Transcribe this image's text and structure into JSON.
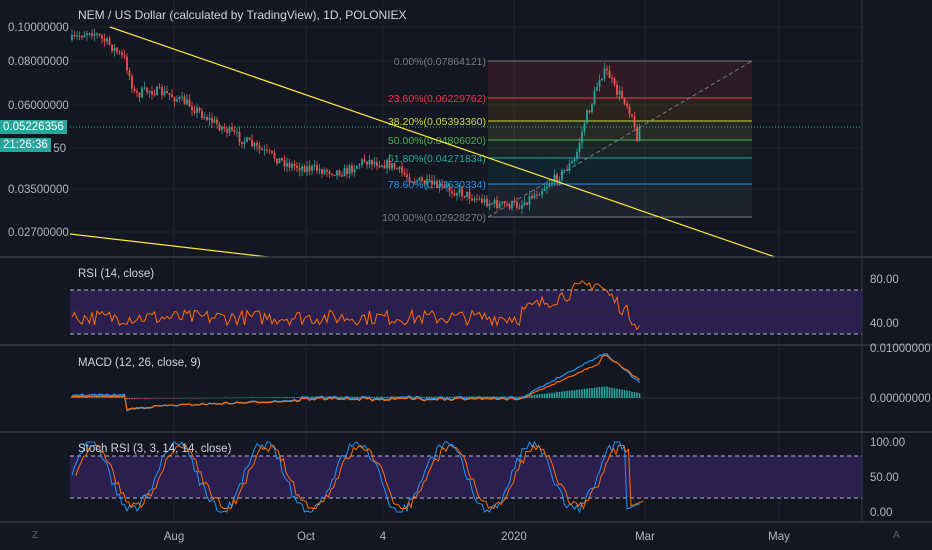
{
  "symbol_title": "NEM / US Dollar (calculated by TradingView), 1D, POLONIEX",
  "price_axis": [
    "0.10000000",
    "0.08000000",
    "0.06000000",
    "0.05226356",
    "0.04500000",
    "0.03500000",
    "0.02700000"
  ],
  "current_price_tag": "0.05226356",
  "countdown_tag": "21:26:36",
  "fib_levels": [
    {
      "label": "0.00%(0.07864121)",
      "color": "#787b86"
    },
    {
      "label": "23.60%(0.06229762)",
      "color": "#f23645"
    },
    {
      "label": "38.20%(0.05393360)",
      "color": "#cddc39"
    },
    {
      "label": "50.00%(0.04806020)",
      "color": "#4caf50"
    },
    {
      "label": "61.80%(0.04271834)",
      "color": "#26a69a"
    },
    {
      "label": "78.60%(0.03630334)",
      "color": "#2196f3"
    },
    {
      "label": "100.00%(0.02928270)",
      "color": "#787b86"
    }
  ],
  "indicators": {
    "rsi": {
      "title": "RSI (14, close)",
      "axis": [
        "80.00",
        "40.00"
      ]
    },
    "macd": {
      "title": "MACD (12, 26, close, 9)",
      "axis": [
        "0.01000000",
        "0.00000000"
      ]
    },
    "stoch": {
      "title": "Stoch RSI (3, 3, 14, 14, close)",
      "axis": [
        "100.00",
        "50.00",
        "0.00"
      ]
    }
  },
  "time_axis": [
    "Aug",
    "Oct",
    "4",
    "2020",
    "Mar",
    "May"
  ],
  "corner_icons": {
    "left": "Z",
    "right": "A"
  },
  "colors": {
    "up": "#26a69a",
    "down": "#ef5350",
    "trendline": "#ffeb3b",
    "rsi_line": "#ff6d00",
    "macd_line": "#2196f3",
    "signal_line": "#ff6d00",
    "band_fill": "#2a1f4f"
  }
}
